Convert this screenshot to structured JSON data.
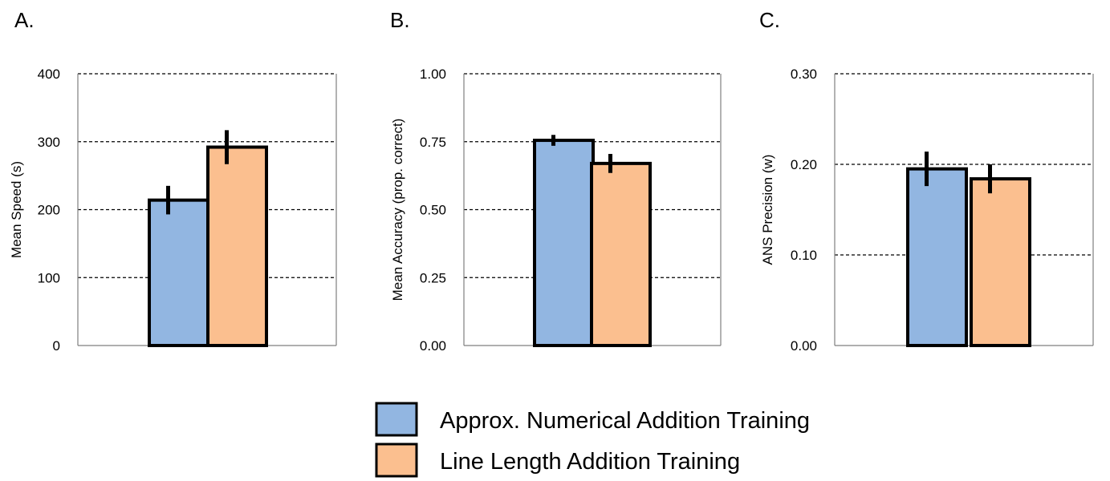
{
  "colors": {
    "series_a": "#92b6e1",
    "series_b": "#fbbf8f",
    "outline": "#000000",
    "grid": "#000000"
  },
  "legend": {
    "items": [
      {
        "label": "Approx. Numerical Addition Training",
        "color": "#92b6e1"
      },
      {
        "label": "Line Length Addition Training",
        "color": "#fbbf8f"
      }
    ]
  },
  "chart_data": [
    {
      "type": "bar",
      "panel_label": "A.",
      "title": "",
      "xlabel": "",
      "ylabel": "Mean Speed (s)",
      "ylim": [
        0,
        400
      ],
      "yticks": [
        0,
        100,
        200,
        300,
        400
      ],
      "ytick_labels": [
        "0",
        "100",
        "200",
        "300",
        "400"
      ],
      "grid": true,
      "series": [
        {
          "name": "Approx. Numerical Addition Training",
          "values": [
            214
          ],
          "error": [
            21
          ]
        },
        {
          "name": "Line Length Addition Training",
          "values": [
            292
          ],
          "error": [
            25
          ]
        }
      ]
    },
    {
      "type": "bar",
      "panel_label": "B.",
      "title": "",
      "xlabel": "",
      "ylabel": "Mean Accuracy (prop. correct)",
      "ylim": [
        0,
        1
      ],
      "yticks": [
        0,
        0.25,
        0.5,
        0.75,
        1
      ],
      "ytick_labels": [
        "0.00",
        "0.25",
        "0.50",
        "0.75",
        "1.00"
      ],
      "grid": true,
      "series": [
        {
          "name": "Approx. Numerical Addition Training",
          "values": [
            0.755
          ],
          "error": [
            0.02
          ]
        },
        {
          "name": "Line Length Addition Training",
          "values": [
            0.67
          ],
          "error": [
            0.035
          ]
        }
      ]
    },
    {
      "type": "bar",
      "panel_label": "C.",
      "title": "",
      "xlabel": "",
      "ylabel": "ANS Precision (w)",
      "ylim": [
        0,
        0.3
      ],
      "yticks": [
        0,
        0.1,
        0.2,
        0.3
      ],
      "ytick_labels": [
        "0.00",
        "0.10",
        "0.20",
        "0.30"
      ],
      "grid": true,
      "series": [
        {
          "name": "Approx. Numerical Addition Training",
          "values": [
            0.195
          ],
          "error": [
            0.019
          ]
        },
        {
          "name": "Line Length Addition Training",
          "values": [
            0.184
          ],
          "error": [
            0.016
          ]
        }
      ]
    }
  ]
}
